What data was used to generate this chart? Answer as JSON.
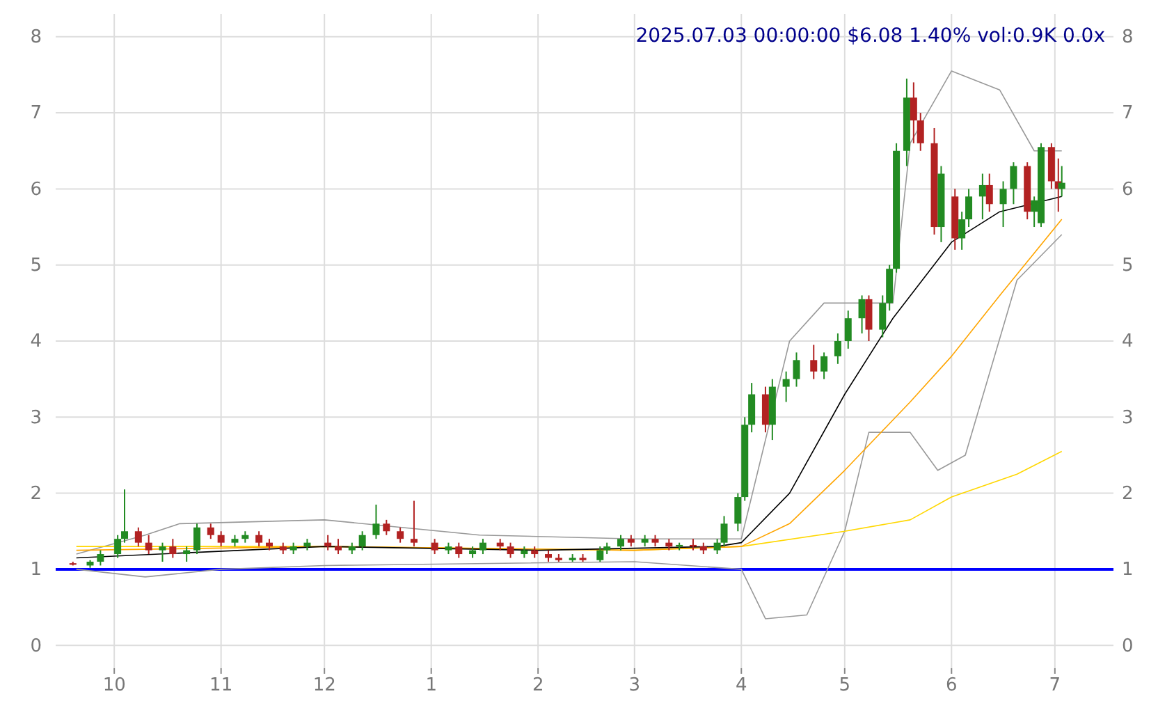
{
  "chart_data": {
    "type": "candlestick",
    "title": "2025.07.03 00:00:00 $6.08 1.40% vol:0.9K 0.0x",
    "x": [
      "2024-09-19",
      "2024-09-24",
      "2024-09-27",
      "2024-10-02",
      "2024-10-04",
      "2024-10-08",
      "2024-10-11",
      "2024-10-15",
      "2024-10-18",
      "2024-10-22",
      "2024-10-25",
      "2024-10-29",
      "2024-11-01",
      "2024-11-05",
      "2024-11-08",
      "2024-11-12",
      "2024-11-15",
      "2024-11-19",
      "2024-11-22",
      "2024-11-26",
      "2024-12-02",
      "2024-12-05",
      "2024-12-09",
      "2024-12-12",
      "2024-12-16",
      "2024-12-19",
      "2024-12-23",
      "2024-12-27",
      "2025-01-02",
      "2025-01-06",
      "2025-01-09",
      "2025-01-13",
      "2025-01-16",
      "2025-01-21",
      "2025-01-24",
      "2025-01-28",
      "2025-01-31",
      "2025-02-04",
      "2025-02-07",
      "2025-02-11",
      "2025-02-14",
      "2025-02-19",
      "2025-02-21",
      "2025-02-25",
      "2025-02-28",
      "2025-03-04",
      "2025-03-07",
      "2025-03-11",
      "2025-03-14",
      "2025-03-18",
      "2025-03-21",
      "2025-03-25",
      "2025-03-27",
      "2025-03-31",
      "2025-04-02",
      "2025-04-04",
      "2025-04-08",
      "2025-04-10",
      "2025-04-14",
      "2025-04-17",
      "2025-04-22",
      "2025-04-25",
      "2025-04-29",
      "2025-05-02",
      "2025-05-06",
      "2025-05-08",
      "2025-05-12",
      "2025-05-14",
      "2025-05-16",
      "2025-05-19",
      "2025-05-21",
      "2025-05-23",
      "2025-05-27",
      "2025-05-29",
      "2025-06-02",
      "2025-06-04",
      "2025-06-06",
      "2025-06-10",
      "2025-06-12",
      "2025-06-16",
      "2025-06-19",
      "2025-06-23",
      "2025-06-25",
      "2025-06-27",
      "2025-06-30",
      "2025-07-02",
      "2025-07-03"
    ],
    "ohlc": [
      [
        1.08,
        1.1,
        1.05,
        1.06
      ],
      [
        1.05,
        1.12,
        1.02,
        1.1
      ],
      [
        1.1,
        1.25,
        1.05,
        1.2
      ],
      [
        1.2,
        1.45,
        1.15,
        1.4
      ],
      [
        1.4,
        2.05,
        1.35,
        1.5
      ],
      [
        1.5,
        1.55,
        1.3,
        1.35
      ],
      [
        1.35,
        1.45,
        1.2,
        1.25
      ],
      [
        1.25,
        1.35,
        1.1,
        1.3
      ],
      [
        1.3,
        1.4,
        1.15,
        1.2
      ],
      [
        1.2,
        1.3,
        1.1,
        1.25
      ],
      [
        1.25,
        1.6,
        1.2,
        1.55
      ],
      [
        1.55,
        1.6,
        1.4,
        1.45
      ],
      [
        1.45,
        1.5,
        1.3,
        1.35
      ],
      [
        1.35,
        1.45,
        1.3,
        1.4
      ],
      [
        1.4,
        1.5,
        1.35,
        1.45
      ],
      [
        1.45,
        1.5,
        1.3,
        1.35
      ],
      [
        1.35,
        1.4,
        1.25,
        1.3
      ],
      [
        1.3,
        1.35,
        1.2,
        1.25
      ],
      [
        1.25,
        1.35,
        1.2,
        1.3
      ],
      [
        1.3,
        1.4,
        1.25,
        1.35
      ],
      [
        1.35,
        1.45,
        1.25,
        1.3
      ],
      [
        1.3,
        1.4,
        1.2,
        1.25
      ],
      [
        1.25,
        1.35,
        1.2,
        1.3
      ],
      [
        1.3,
        1.5,
        1.25,
        1.45
      ],
      [
        1.45,
        1.85,
        1.4,
        1.6
      ],
      [
        1.6,
        1.65,
        1.45,
        1.5
      ],
      [
        1.5,
        1.55,
        1.35,
        1.4
      ],
      [
        1.4,
        1.9,
        1.3,
        1.35
      ],
      [
        1.35,
        1.4,
        1.2,
        1.25
      ],
      [
        1.25,
        1.35,
        1.2,
        1.3
      ],
      [
        1.3,
        1.35,
        1.15,
        1.2
      ],
      [
        1.2,
        1.3,
        1.15,
        1.25
      ],
      [
        1.25,
        1.4,
        1.2,
        1.35
      ],
      [
        1.35,
        1.4,
        1.25,
        1.3
      ],
      [
        1.3,
        1.35,
        1.15,
        1.2
      ],
      [
        1.2,
        1.3,
        1.15,
        1.25
      ],
      [
        1.25,
        1.3,
        1.15,
        1.2
      ],
      [
        1.2,
        1.25,
        1.1,
        1.15
      ],
      [
        1.15,
        1.2,
        1.1,
        1.12
      ],
      [
        1.12,
        1.2,
        1.1,
        1.15
      ],
      [
        1.15,
        1.2,
        1.1,
        1.12
      ],
      [
        1.12,
        1.3,
        1.1,
        1.25
      ],
      [
        1.25,
        1.35,
        1.2,
        1.3
      ],
      [
        1.3,
        1.45,
        1.25,
        1.4
      ],
      [
        1.4,
        1.45,
        1.3,
        1.35
      ],
      [
        1.35,
        1.45,
        1.3,
        1.4
      ],
      [
        1.4,
        1.45,
        1.3,
        1.35
      ],
      [
        1.35,
        1.4,
        1.25,
        1.3
      ],
      [
        1.3,
        1.35,
        1.25,
        1.32
      ],
      [
        1.32,
        1.4,
        1.25,
        1.3
      ],
      [
        1.3,
        1.35,
        1.2,
        1.25
      ],
      [
        1.25,
        1.4,
        1.2,
        1.35
      ],
      [
        1.35,
        1.7,
        1.3,
        1.6
      ],
      [
        1.6,
        2.0,
        1.5,
        1.95
      ],
      [
        1.95,
        3.0,
        1.9,
        2.9
      ],
      [
        2.9,
        3.45,
        2.8,
        3.3
      ],
      [
        3.3,
        3.4,
        2.8,
        2.9
      ],
      [
        2.9,
        3.5,
        2.7,
        3.4
      ],
      [
        3.4,
        3.6,
        3.2,
        3.5
      ],
      [
        3.5,
        3.85,
        3.4,
        3.75
      ],
      [
        3.75,
        3.95,
        3.5,
        3.6
      ],
      [
        3.6,
        3.85,
        3.5,
        3.8
      ],
      [
        3.8,
        4.1,
        3.7,
        4.0
      ],
      [
        4.0,
        4.4,
        3.9,
        4.3
      ],
      [
        4.3,
        4.6,
        4.1,
        4.55
      ],
      [
        4.55,
        4.6,
        4.0,
        4.15
      ],
      [
        4.15,
        4.6,
        4.05,
        4.5
      ],
      [
        4.5,
        5.0,
        4.4,
        4.95
      ],
      [
        4.95,
        6.6,
        4.9,
        6.5
      ],
      [
        6.5,
        7.45,
        6.3,
        7.2
      ],
      [
        7.2,
        7.4,
        6.6,
        6.9
      ],
      [
        6.9,
        7.0,
        6.5,
        6.6
      ],
      [
        6.6,
        6.8,
        5.4,
        5.5
      ],
      [
        5.5,
        6.3,
        5.3,
        6.2
      ],
      [
        5.9,
        6.0,
        5.2,
        5.35
      ],
      [
        5.35,
        5.7,
        5.2,
        5.6
      ],
      [
        5.6,
        6.0,
        5.5,
        5.9
      ],
      [
        5.9,
        6.2,
        5.6,
        6.05
      ],
      [
        6.05,
        6.2,
        5.7,
        5.8
      ],
      [
        5.8,
        6.1,
        5.5,
        6.0
      ],
      [
        6.0,
        6.35,
        5.8,
        6.3
      ],
      [
        6.3,
        6.35,
        5.6,
        5.7
      ],
      [
        5.7,
        5.9,
        5.5,
        5.85
      ],
      [
        5.55,
        6.6,
        5.5,
        6.55
      ],
      [
        6.55,
        6.6,
        6.0,
        6.1
      ],
      [
        6.1,
        6.4,
        5.7,
        6.0
      ],
      [
        6.0,
        6.3,
        5.9,
        6.08
      ]
    ],
    "series": [
      {
        "type": "line",
        "color": "#000000",
        "x": [
          "2024-09-20",
          "2024-12-01",
          "2025-02-01",
          "2025-03-25",
          "2025-04-01",
          "2025-04-15",
          "2025-05-01",
          "2025-05-15",
          "2025-06-01",
          "2025-06-15",
          "2025-07-03"
        ],
        "values": [
          1.15,
          1.3,
          1.25,
          1.3,
          1.35,
          2.0,
          3.3,
          4.3,
          5.3,
          5.7,
          5.9
        ]
      },
      {
        "type": "line",
        "color": "#ffa500",
        "x": [
          "2024-09-20",
          "2024-12-01",
          "2025-03-01",
          "2025-04-01",
          "2025-04-15",
          "2025-05-01",
          "2025-05-20",
          "2025-06-01",
          "2025-06-15",
          "2025-07-03"
        ],
        "values": [
          1.25,
          1.3,
          1.25,
          1.3,
          1.6,
          2.3,
          3.2,
          3.8,
          4.6,
          5.6
        ]
      },
      {
        "type": "line",
        "color": "#ffd700",
        "x": [
          "2024-09-20",
          "2024-12-01",
          "2025-03-01",
          "2025-04-01",
          "2025-05-01",
          "2025-05-20",
          "2025-06-01",
          "2025-06-20",
          "2025-07-03"
        ],
        "values": [
          1.3,
          1.3,
          1.25,
          1.3,
          1.5,
          1.65,
          1.95,
          2.25,
          2.55
        ]
      },
      {
        "type": "line",
        "color": "#999999",
        "x": [
          "2024-09-20",
          "2024-10-10",
          "2024-10-20",
          "2024-12-01",
          "2025-01-15",
          "2025-03-01",
          "2025-04-01",
          "2025-04-15",
          "2025-04-25",
          "2025-05-15",
          "2025-05-20",
          "2025-06-01",
          "2025-06-15",
          "2025-06-25",
          "2025-07-03"
        ],
        "values": [
          1.2,
          1.45,
          1.6,
          1.65,
          1.45,
          1.4,
          1.4,
          4.0,
          4.5,
          4.5,
          6.6,
          7.55,
          7.3,
          6.5,
          6.5
        ]
      },
      {
        "type": "line",
        "color": "#999999",
        "x": [
          "2024-09-20",
          "2024-10-10",
          "2024-11-01",
          "2024-12-01",
          "2025-03-01",
          "2025-04-01",
          "2025-04-08",
          "2025-04-20",
          "2025-05-01",
          "2025-05-08",
          "2025-05-20",
          "2025-05-28",
          "2025-06-05",
          "2025-06-20",
          "2025-07-03"
        ],
        "values": [
          1.0,
          0.9,
          1.0,
          1.05,
          1.1,
          1.0,
          0.35,
          0.4,
          1.5,
          2.8,
          2.8,
          2.3,
          2.5,
          4.8,
          5.4
        ]
      }
    ],
    "ref_lines": [
      {
        "axis": "y",
        "value": 1,
        "color": "#0000ff"
      }
    ],
    "xlim": [
      "2024-09-14",
      "2025-07-18"
    ],
    "xticks": [
      {
        "value": "2024-10-01",
        "label": "10"
      },
      {
        "value": "2024-11-01",
        "label": "11"
      },
      {
        "value": "2024-12-01",
        "label": "12"
      },
      {
        "value": "2025-01-01",
        "label": "1"
      },
      {
        "value": "2025-02-01",
        "label": "2"
      },
      {
        "value": "2025-03-01",
        "label": "3"
      },
      {
        "value": "2025-04-01",
        "label": "4"
      },
      {
        "value": "2025-05-01",
        "label": "5"
      },
      {
        "value": "2025-06-01",
        "label": "6"
      },
      {
        "value": "2025-07-01",
        "label": "7"
      }
    ],
    "ylim": [
      -0.3,
      8.3
    ],
    "yticks": [
      0,
      1,
      2,
      3,
      4,
      5,
      6,
      7,
      8
    ],
    "y2lim": [
      -0.3,
      8.3
    ],
    "y2ticks": [
      0,
      1,
      2,
      3,
      4,
      5,
      6,
      7,
      8
    ],
    "grid": true
  }
}
